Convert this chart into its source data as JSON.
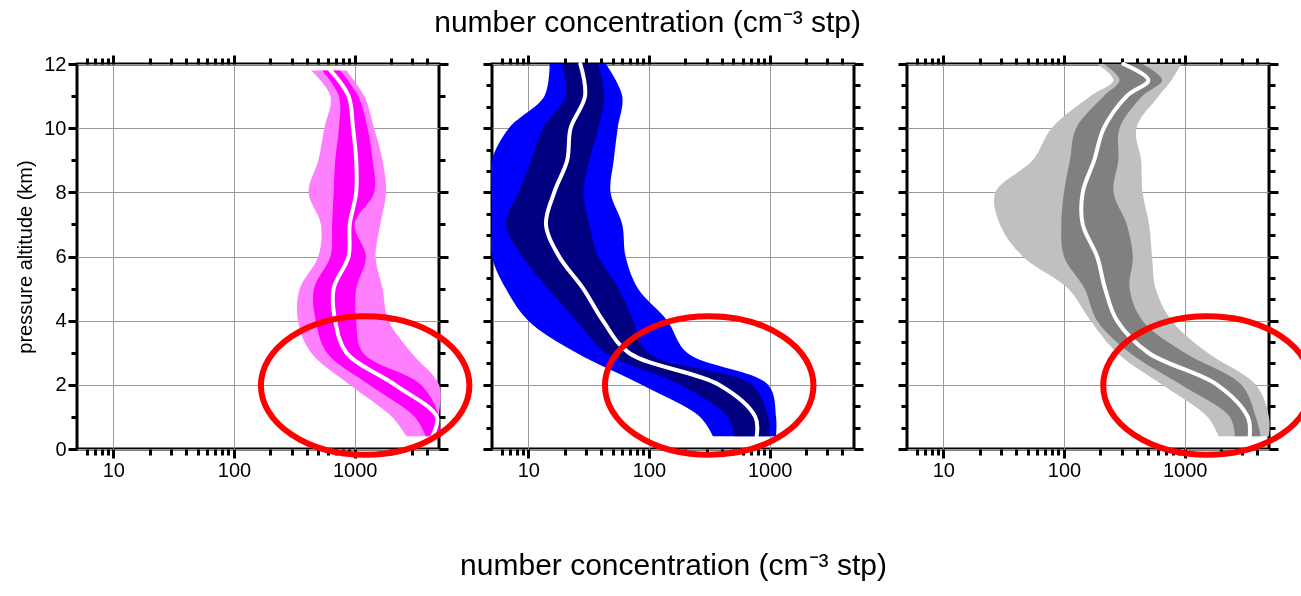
{
  "chart_data": [
    {
      "type": "line",
      "orientation": "horizontal",
      "log": "x",
      "ylabel": "pressure altitude (km)",
      "grid": true,
      "xlim": [
        5,
        5000
      ],
      "ylim": [
        0,
        12
      ],
      "xticks": [
        {
          "value": 6,
          "label": null
        },
        {
          "value": 7,
          "label": null
        },
        {
          "value": 8,
          "label": null
        },
        {
          "value": 9,
          "label": null
        },
        10,
        {
          "value": 20,
          "label": null
        },
        {
          "value": 30,
          "label": null
        },
        {
          "value": 40,
          "label": null
        },
        {
          "value": 50,
          "label": null
        },
        {
          "value": 60,
          "label": null
        },
        {
          "value": 70,
          "label": null
        },
        {
          "value": 80,
          "label": null
        },
        {
          "value": 90,
          "label": null
        },
        100,
        {
          "value": 200,
          "label": null
        },
        {
          "value": 300,
          "label": null
        },
        {
          "value": 400,
          "label": null
        },
        {
          "value": 500,
          "label": null
        },
        {
          "value": 600,
          "label": null
        },
        {
          "value": 700,
          "label": null
        },
        {
          "value": 800,
          "label": null
        },
        {
          "value": 900,
          "label": null
        },
        1000,
        {
          "value": 2000,
          "label": null
        },
        {
          "value": 3000,
          "label": null
        },
        {
          "value": 4000,
          "label": null
        }
      ],
      "yticks": [
        0,
        {
          "value": 1,
          "label": null
        },
        2,
        {
          "value": 3,
          "label": null
        },
        4,
        {
          "value": 5,
          "label": null
        },
        6,
        {
          "value": 7,
          "label": null
        },
        8,
        {
          "value": 9,
          "label": null
        },
        10,
        {
          "value": 11,
          "label": null
        },
        12
      ],
      "x": [
        0.4,
        1,
        2,
        3,
        4,
        5,
        6,
        7,
        8,
        9,
        10,
        11,
        11.8
      ],
      "series": [
        {
          "color": "#ff80ff",
          "values": [
            null,
            null,
            null,
            null,
            null,
            null,
            null,
            null,
            null,
            null,
            null,
            null,
            null
          ],
          "lower": [
            2690,
            2040,
            912,
            436,
            339,
            351,
            500,
            525,
            415,
            500,
            560,
            630,
            436
          ],
          "upper": [
            5000,
            5000,
            5000,
            2950,
            1910,
            1700,
            1490,
            1630,
            1820,
            1700,
            1450,
            1200,
            855
          ]
        },
        {
          "color": "#ff00ff",
          "values": [
            null,
            null,
            null,
            null,
            null,
            null,
            null,
            null,
            null,
            null,
            null,
            null,
            null
          ],
          "lower": [
            3890,
            3150,
            1320,
            590,
            476,
            460,
            630,
            650,
            670,
            690,
            740,
            740,
            540
          ],
          "upper": [
            5000,
            5000,
            3550,
            1170,
            1030,
            1030,
            1240,
            1000,
            1450,
            1410,
            1280,
            1070,
            760
          ]
        },
        {
          "color": "#ffffff",
          "values": [
            4400,
            4800,
            2160,
            855,
            690,
            670,
            890,
            910,
            1030,
            1030,
            970,
            890,
            630
          ]
        }
      ]
    },
    {
      "type": "line",
      "orientation": "horizontal",
      "log": "x",
      "title": "number concentration  (cm⁻³ stp)",
      "xlabel": "number concentration  (cm⁻³ stp)",
      "grid": true,
      "tick_labels": "x",
      "xlim": [
        5,
        5000
      ],
      "ylim": [
        0,
        12
      ],
      "xticks": [
        {
          "value": 6,
          "label": null
        },
        {
          "value": 7,
          "label": null
        },
        {
          "value": 8,
          "label": null
        },
        {
          "value": 9,
          "label": null
        },
        10,
        {
          "value": 20,
          "label": null
        },
        {
          "value": 30,
          "label": null
        },
        {
          "value": 40,
          "label": null
        },
        {
          "value": 50,
          "label": null
        },
        {
          "value": 60,
          "label": null
        },
        {
          "value": 70,
          "label": null
        },
        {
          "value": 80,
          "label": null
        },
        {
          "value": 90,
          "label": null
        },
        100,
        {
          "value": 200,
          "label": null
        },
        {
          "value": 300,
          "label": null
        },
        {
          "value": 400,
          "label": null
        },
        {
          "value": 500,
          "label": null
        },
        {
          "value": 600,
          "label": null
        },
        {
          "value": 700,
          "label": null
        },
        {
          "value": 800,
          "label": null
        },
        {
          "value": 900,
          "label": null
        },
        1000,
        {
          "value": 2000,
          "label": null
        },
        {
          "value": 3000,
          "label": null
        },
        {
          "value": 4000,
          "label": null
        }
      ],
      "yticks": [
        0,
        {
          "value": 0.667,
          "label": null
        },
        {
          "value": 1.333,
          "label": null
        },
        2,
        {
          "value": 2.667,
          "label": null
        },
        {
          "value": 3.333,
          "label": null
        },
        4,
        {
          "value": 4.667,
          "label": null
        },
        {
          "value": 5.333,
          "label": null
        },
        6,
        {
          "value": 6.667,
          "label": null
        },
        {
          "value": 7.333,
          "label": null
        },
        8,
        {
          "value": 8.667,
          "label": null
        },
        {
          "value": 9.333,
          "label": null
        },
        10,
        {
          "value": 10.667,
          "label": null
        },
        {
          "value": 11.333,
          "label": null
        },
        12
      ],
      "x": [
        0.4,
        1,
        2,
        3,
        4,
        5,
        6,
        7,
        8,
        9,
        10,
        11,
        12
      ],
      "series": [
        {
          "color": "#0000ff",
          "values": [
            null,
            null,
            null,
            null,
            null,
            null,
            null,
            null,
            null,
            null,
            null,
            null,
            null
          ],
          "lower": [
            339,
            265,
            87,
            25,
            10,
            6.5,
            5,
            5,
            5,
            5,
            6.9,
            13.6,
            15
          ],
          "upper": [
            1130,
            1130,
            970,
            207,
            142,
            81,
            64,
            60,
            48,
            51,
            55,
            60,
            44
          ]
        },
        {
          "color": "#000080",
          "values": [
            null,
            null,
            null,
            null,
            null,
            null,
            null,
            null,
            null,
            null,
            null,
            null,
            null
          ],
          "lower": [
            507,
            450,
            182,
            44,
            25,
            14.5,
            8.9,
            6.5,
            8.3,
            10.6,
            13.2,
            20.4,
            19
          ],
          "upper": [
            1000,
            970,
            710,
            98,
            74,
            56,
            38,
            32,
            28.6,
            32,
            38,
            42.7,
            38
          ]
        },
        {
          "color": "#ffffff",
          "values": [
            780,
            760,
            380,
            68,
            41.5,
            28.5,
            18,
            14,
            16.4,
            21,
            22.4,
            29.5,
            27
          ]
        }
      ]
    },
    {
      "type": "line",
      "orientation": "horizontal",
      "log": "x",
      "grid": true,
      "tick_labels": "x",
      "xlim": [
        5,
        5000
      ],
      "ylim": [
        0,
        12
      ],
      "xticks": [
        {
          "value": 6,
          "label": null
        },
        {
          "value": 7,
          "label": null
        },
        {
          "value": 8,
          "label": null
        },
        {
          "value": 9,
          "label": null
        },
        10,
        {
          "value": 20,
          "label": null
        },
        {
          "value": 30,
          "label": null
        },
        {
          "value": 40,
          "label": null
        },
        {
          "value": 50,
          "label": null
        },
        {
          "value": 60,
          "label": null
        },
        {
          "value": 70,
          "label": null
        },
        {
          "value": 80,
          "label": null
        },
        {
          "value": 90,
          "label": null
        },
        100,
        {
          "value": 200,
          "label": null
        },
        {
          "value": 300,
          "label": null
        },
        {
          "value": 400,
          "label": null
        },
        {
          "value": 500,
          "label": null
        },
        {
          "value": 600,
          "label": null
        },
        {
          "value": 700,
          "label": null
        },
        {
          "value": 800,
          "label": null
        },
        {
          "value": 900,
          "label": null
        },
        1000,
        {
          "value": 2000,
          "label": null
        },
        {
          "value": 3000,
          "label": null
        },
        {
          "value": 4000,
          "label": null
        }
      ],
      "yticks": [
        0,
        {
          "value": 0.667,
          "label": null
        },
        {
          "value": 1.333,
          "label": null
        },
        2,
        {
          "value": 2.667,
          "label": null
        },
        {
          "value": 3.333,
          "label": null
        },
        4,
        {
          "value": 4.667,
          "label": null
        },
        {
          "value": 5.333,
          "label": null
        },
        6,
        {
          "value": 6.667,
          "label": null
        },
        {
          "value": 7.333,
          "label": null
        },
        8,
        {
          "value": 8.667,
          "label": null
        },
        {
          "value": 9.333,
          "label": null
        },
        10,
        {
          "value": 10.667,
          "label": null
        },
        {
          "value": 11.333,
          "label": null
        },
        12
      ],
      "x": [
        0.4,
        1,
        2,
        3,
        4,
        5,
        6,
        7,
        8,
        9,
        10,
        11,
        11.5,
        12
      ],
      "series": [
        {
          "color": "#c0c0c0",
          "values": [
            null,
            null,
            null,
            null,
            null,
            null,
            null,
            null,
            null,
            null,
            null,
            null,
            null,
            null
          ],
          "lower": [
            1910,
            1550,
            650,
            275,
            166,
            108,
            45.5,
            29.5,
            27,
            55,
            79,
            166,
            257,
            188
          ],
          "upper": [
            5000,
            5000,
            3890,
            1550,
            780,
            575,
            537,
            507,
            447,
            436,
            398,
            610,
            780,
            935
          ]
        },
        {
          "color": "#808080",
          "values": [
            null,
            null,
            null,
            null,
            null,
            null,
            null,
            null,
            null,
            null,
            null,
            null,
            null,
            null
          ],
          "lower": [
            2610,
            2370,
            935,
            350,
            188,
            148,
            100,
            95,
            100,
            112,
            126,
            214,
            289,
            214
          ],
          "upper": [
            4270,
            3890,
            2950,
            1000,
            447,
            350,
            372,
            331,
            257,
            282,
            289,
            447,
            650,
            447
          ]
        },
        {
          "color": "#ffffff",
          "values": [
            3460,
            3330,
            1860,
            500,
            275,
            219,
            188,
            143,
            143,
            178,
            214,
            331,
            500,
            310
          ]
        }
      ]
    }
  ]
}
